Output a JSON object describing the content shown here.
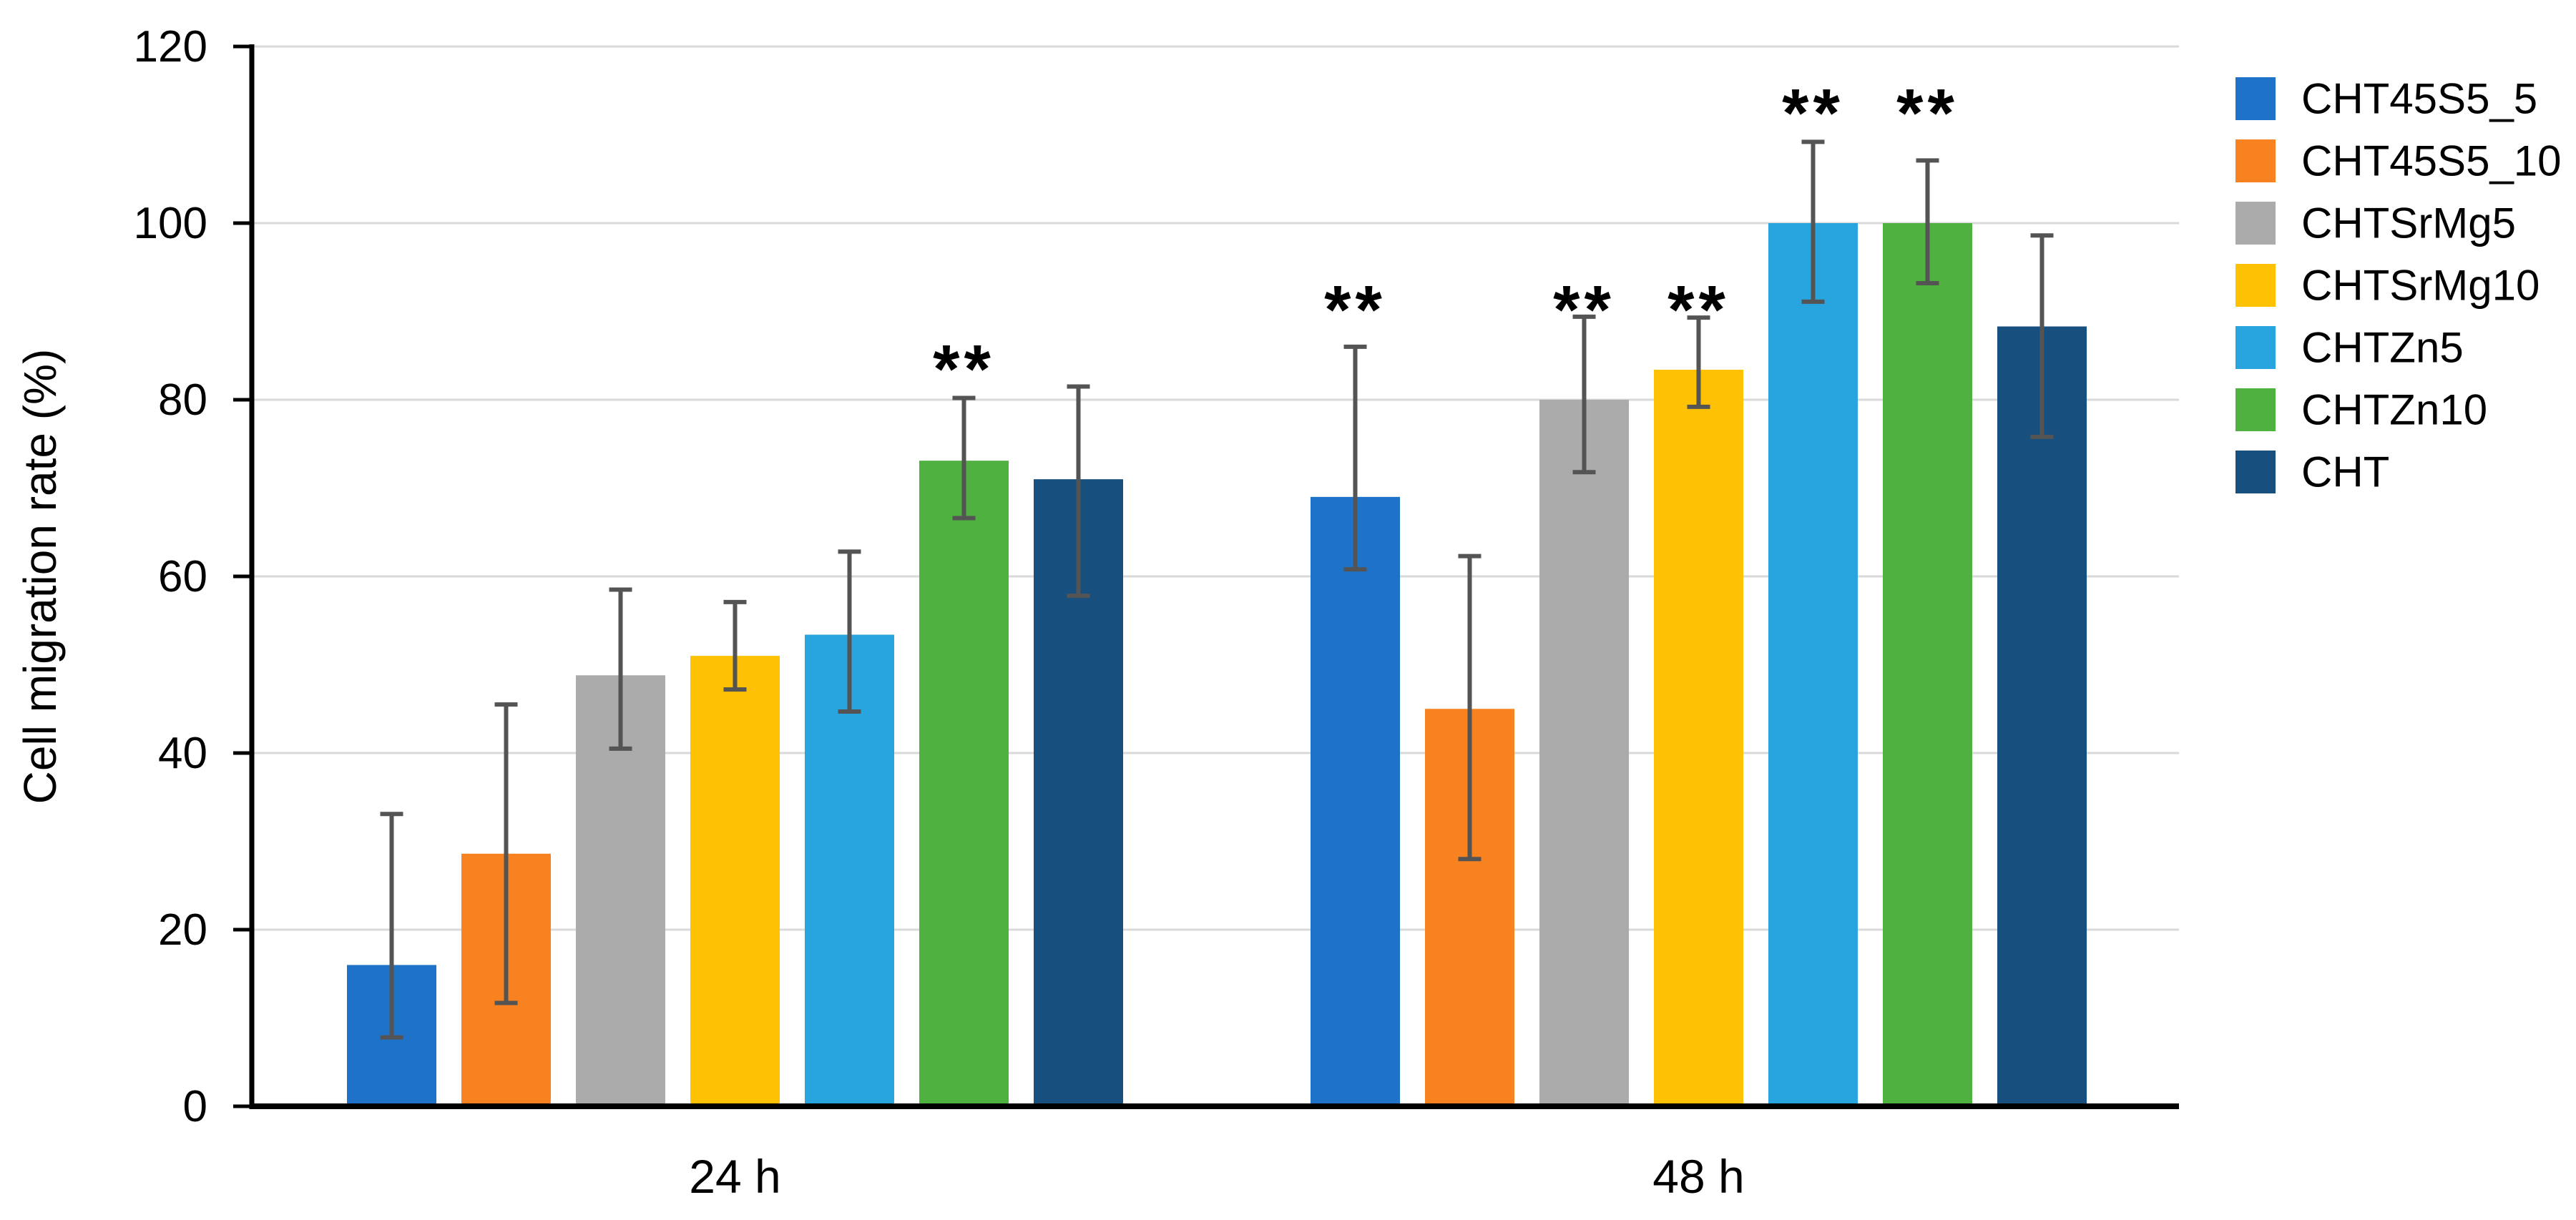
{
  "chart_data": {
    "type": "bar",
    "title": "",
    "xlabel": "",
    "ylabel": "Cell migration rate (%)",
    "ylim": [
      0,
      120
    ],
    "yticks": [
      0,
      20,
      40,
      60,
      80,
      100,
      120
    ],
    "grid": true,
    "legend_position": "right",
    "categories": [
      "24 h",
      "48 h"
    ],
    "error_bars": true,
    "significance_symbol": "**",
    "colors": {
      "gridline": "#d9d9d9",
      "axis": "#000000",
      "error_bar": "#545454",
      "text": "#000000"
    },
    "series": [
      {
        "name": "CHT45S5_5",
        "color": "#1e73c8",
        "values": [
          16.0,
          69.0
        ],
        "err_low": [
          7.8,
          60.8
        ],
        "err_high": [
          33.1,
          86.0
        ],
        "sig": [
          "",
          "**"
        ]
      },
      {
        "name": "CHT45S5_10",
        "color": "#f8821f",
        "values": [
          28.6,
          45.0
        ],
        "err_low": [
          11.7,
          28.0
        ],
        "err_high": [
          45.5,
          62.3
        ],
        "sig": [
          "",
          ""
        ]
      },
      {
        "name": "CHTSrMg5",
        "color": "#ababab",
        "values": [
          48.8,
          80.0
        ],
        "err_low": [
          40.5,
          71.8
        ],
        "err_high": [
          58.5,
          89.4
        ],
        "sig": [
          "",
          "**"
        ]
      },
      {
        "name": "CHTSrMg10",
        "color": "#ffc103",
        "values": [
          51.0,
          83.4
        ],
        "err_low": [
          47.2,
          79.2
        ],
        "err_high": [
          57.1,
          89.3
        ],
        "sig": [
          "",
          "**"
        ]
      },
      {
        "name": "CHTZn5",
        "color": "#28a4de",
        "values": [
          53.4,
          100.0
        ],
        "err_low": [
          44.7,
          91.1
        ],
        "err_high": [
          62.8,
          109.2
        ],
        "sig": [
          "",
          "**"
        ]
      },
      {
        "name": "CHTZn10",
        "color": "#4fb13f",
        "values": [
          73.1,
          100.0
        ],
        "err_low": [
          66.6,
          93.2
        ],
        "err_high": [
          80.2,
          107.1
        ],
        "sig": [
          "**",
          "**"
        ]
      },
      {
        "name": "CHT",
        "color": "#17507e",
        "values": [
          71.0,
          88.3
        ],
        "err_low": [
          57.8,
          75.8
        ],
        "err_high": [
          81.5,
          98.6
        ],
        "sig": [
          "",
          ""
        ]
      }
    ]
  }
}
